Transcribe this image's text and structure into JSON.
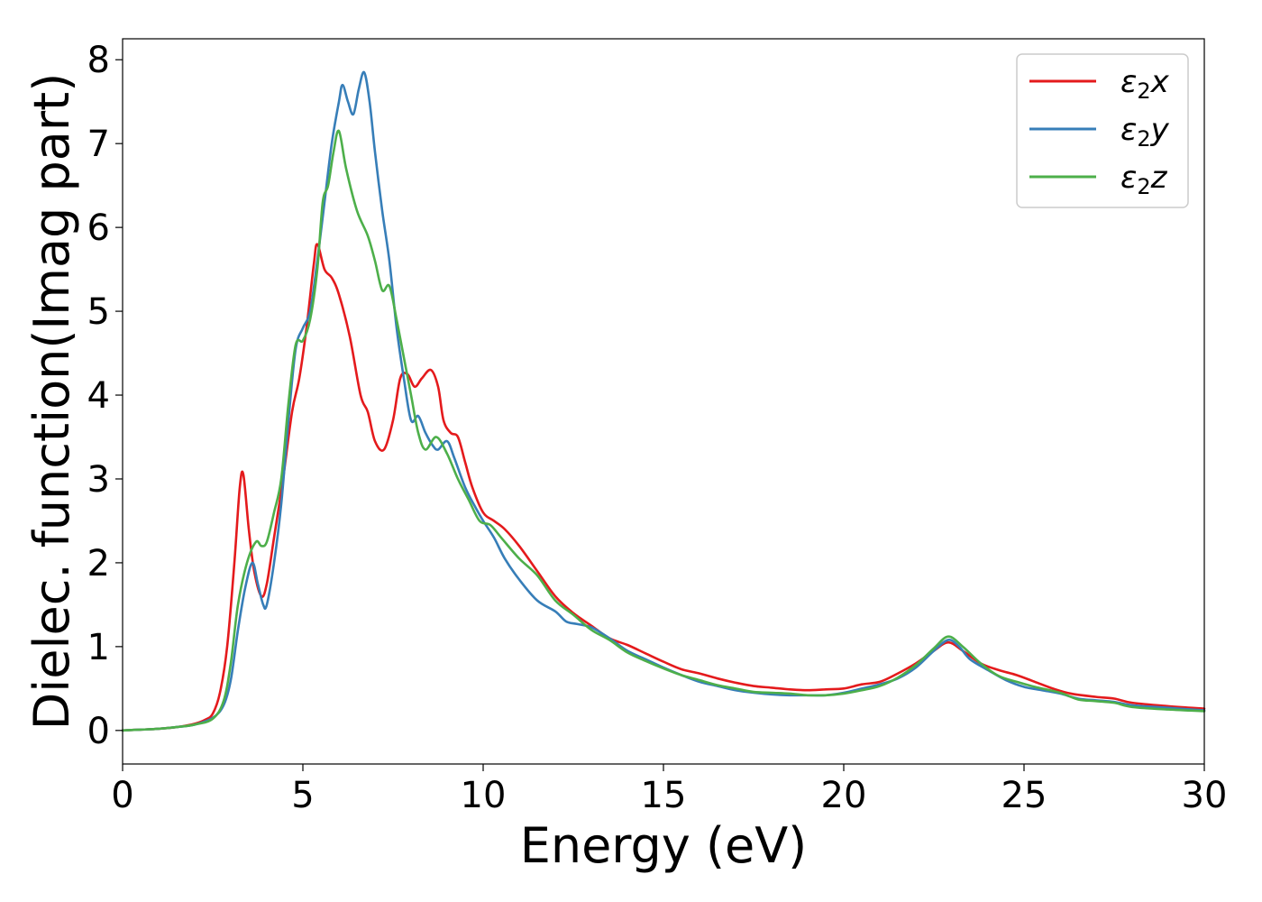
{
  "chart_data": {
    "type": "line",
    "title": "",
    "xlabel": "Energy (eV)",
    "ylabel": "Dielec. function(Imag part)",
    "xlim": [
      0,
      30
    ],
    "ylim": [
      -0.4,
      8.25
    ],
    "xticks": [
      0,
      5,
      10,
      15,
      20,
      25,
      30
    ],
    "yticks": [
      0,
      1,
      2,
      3,
      4,
      5,
      6,
      7,
      8
    ],
    "grid": false,
    "legend_position": "top-right",
    "series": [
      {
        "name": "x",
        "legend_prefix": "ε",
        "legend_sub": "2",
        "color": "#e41a1c",
        "points": [
          [
            0,
            0
          ],
          [
            0.5,
            0.01
          ],
          [
            1,
            0.02
          ],
          [
            1.5,
            0.04
          ],
          [
            2,
            0.08
          ],
          [
            2.3,
            0.13
          ],
          [
            2.5,
            0.2
          ],
          [
            2.7,
            0.45
          ],
          [
            2.9,
            1.0
          ],
          [
            3.1,
            2.0
          ],
          [
            3.25,
            2.9
          ],
          [
            3.35,
            3.05
          ],
          [
            3.5,
            2.4
          ],
          [
            3.65,
            1.9
          ],
          [
            3.85,
            1.6
          ],
          [
            4.0,
            1.75
          ],
          [
            4.2,
            2.3
          ],
          [
            4.45,
            3.0
          ],
          [
            4.7,
            3.8
          ],
          [
            4.9,
            4.2
          ],
          [
            5.1,
            4.8
          ],
          [
            5.3,
            5.55
          ],
          [
            5.4,
            5.8
          ],
          [
            5.6,
            5.5
          ],
          [
            5.8,
            5.4
          ],
          [
            6.0,
            5.2
          ],
          [
            6.3,
            4.7
          ],
          [
            6.6,
            4.0
          ],
          [
            6.8,
            3.8
          ],
          [
            7.0,
            3.45
          ],
          [
            7.25,
            3.35
          ],
          [
            7.5,
            3.7
          ],
          [
            7.7,
            4.2
          ],
          [
            7.9,
            4.25
          ],
          [
            8.1,
            4.1
          ],
          [
            8.3,
            4.2
          ],
          [
            8.55,
            4.3
          ],
          [
            8.75,
            4.1
          ],
          [
            8.9,
            3.7
          ],
          [
            9.1,
            3.55
          ],
          [
            9.3,
            3.5
          ],
          [
            9.5,
            3.2
          ],
          [
            9.7,
            2.9
          ],
          [
            10.0,
            2.6
          ],
          [
            10.3,
            2.5
          ],
          [
            10.6,
            2.4
          ],
          [
            11.0,
            2.2
          ],
          [
            11.5,
            1.9
          ],
          [
            12.0,
            1.6
          ],
          [
            12.5,
            1.4
          ],
          [
            13.0,
            1.25
          ],
          [
            13.5,
            1.1
          ],
          [
            14.0,
            1.02
          ],
          [
            14.5,
            0.92
          ],
          [
            15.0,
            0.82
          ],
          [
            15.5,
            0.73
          ],
          [
            16.0,
            0.68
          ],
          [
            16.5,
            0.62
          ],
          [
            17.0,
            0.57
          ],
          [
            17.5,
            0.53
          ],
          [
            18.0,
            0.51
          ],
          [
            18.5,
            0.49
          ],
          [
            19.0,
            0.48
          ],
          [
            19.5,
            0.49
          ],
          [
            20.0,
            0.5
          ],
          [
            20.5,
            0.55
          ],
          [
            21.0,
            0.58
          ],
          [
            21.5,
            0.68
          ],
          [
            22.0,
            0.8
          ],
          [
            22.5,
            0.95
          ],
          [
            22.9,
            1.05
          ],
          [
            23.3,
            0.95
          ],
          [
            23.8,
            0.8
          ],
          [
            24.3,
            0.72
          ],
          [
            24.8,
            0.66
          ],
          [
            25.3,
            0.58
          ],
          [
            25.8,
            0.5
          ],
          [
            26.3,
            0.44
          ],
          [
            27.0,
            0.4
          ],
          [
            27.5,
            0.38
          ],
          [
            28.0,
            0.33
          ],
          [
            29.0,
            0.29
          ],
          [
            30.0,
            0.26
          ]
        ]
      },
      {
        "name": "y",
        "legend_prefix": "ε",
        "legend_sub": "2",
        "color": "#377eb8",
        "points": [
          [
            0,
            0
          ],
          [
            0.5,
            0.01
          ],
          [
            1,
            0.02
          ],
          [
            1.5,
            0.04
          ],
          [
            2,
            0.07
          ],
          [
            2.5,
            0.15
          ],
          [
            2.8,
            0.3
          ],
          [
            3.0,
            0.6
          ],
          [
            3.2,
            1.2
          ],
          [
            3.4,
            1.7
          ],
          [
            3.6,
            2.0
          ],
          [
            3.75,
            1.75
          ],
          [
            3.9,
            1.5
          ],
          [
            4.0,
            1.5
          ],
          [
            4.2,
            2.0
          ],
          [
            4.4,
            2.7
          ],
          [
            4.6,
            3.7
          ],
          [
            4.8,
            4.55
          ],
          [
            5.0,
            4.8
          ],
          [
            5.2,
            5.0
          ],
          [
            5.4,
            5.6
          ],
          [
            5.6,
            6.3
          ],
          [
            5.8,
            7.0
          ],
          [
            6.0,
            7.5
          ],
          [
            6.1,
            7.7
          ],
          [
            6.25,
            7.5
          ],
          [
            6.4,
            7.35
          ],
          [
            6.55,
            7.65
          ],
          [
            6.7,
            7.85
          ],
          [
            6.85,
            7.5
          ],
          [
            7.0,
            6.9
          ],
          [
            7.2,
            6.2
          ],
          [
            7.4,
            5.6
          ],
          [
            7.6,
            4.8
          ],
          [
            7.8,
            4.2
          ],
          [
            8.0,
            3.7
          ],
          [
            8.2,
            3.75
          ],
          [
            8.4,
            3.55
          ],
          [
            8.6,
            3.4
          ],
          [
            8.75,
            3.35
          ],
          [
            9.0,
            3.45
          ],
          [
            9.2,
            3.25
          ],
          [
            9.5,
            2.9
          ],
          [
            9.8,
            2.65
          ],
          [
            10.0,
            2.5
          ],
          [
            10.3,
            2.3
          ],
          [
            10.6,
            2.05
          ],
          [
            11.0,
            1.8
          ],
          [
            11.5,
            1.55
          ],
          [
            12.0,
            1.42
          ],
          [
            12.3,
            1.3
          ],
          [
            12.6,
            1.27
          ],
          [
            13.0,
            1.23
          ],
          [
            13.5,
            1.1
          ],
          [
            14.0,
            0.95
          ],
          [
            14.5,
            0.85
          ],
          [
            15.0,
            0.75
          ],
          [
            15.5,
            0.66
          ],
          [
            16.0,
            0.58
          ],
          [
            16.5,
            0.53
          ],
          [
            17.0,
            0.48
          ],
          [
            17.5,
            0.45
          ],
          [
            18.0,
            0.43
          ],
          [
            18.5,
            0.42
          ],
          [
            19.0,
            0.42
          ],
          [
            19.5,
            0.42
          ],
          [
            20.0,
            0.45
          ],
          [
            20.5,
            0.5
          ],
          [
            21.0,
            0.55
          ],
          [
            21.5,
            0.62
          ],
          [
            22.0,
            0.75
          ],
          [
            22.5,
            0.95
          ],
          [
            22.9,
            1.08
          ],
          [
            23.2,
            1.0
          ],
          [
            23.5,
            0.85
          ],
          [
            24.0,
            0.72
          ],
          [
            24.5,
            0.6
          ],
          [
            25.0,
            0.52
          ],
          [
            25.5,
            0.48
          ],
          [
            26.0,
            0.44
          ],
          [
            26.5,
            0.38
          ],
          [
            27.0,
            0.36
          ],
          [
            27.5,
            0.34
          ],
          [
            28.0,
            0.3
          ],
          [
            29.0,
            0.27
          ],
          [
            30.0,
            0.24
          ]
        ]
      },
      {
        "name": "z",
        "legend_prefix": "ε",
        "legend_sub": "2",
        "color": "#4daf4a",
        "points": [
          [
            0,
            0
          ],
          [
            0.5,
            0.01
          ],
          [
            1,
            0.02
          ],
          [
            1.5,
            0.04
          ],
          [
            2,
            0.07
          ],
          [
            2.5,
            0.14
          ],
          [
            2.8,
            0.35
          ],
          [
            3.0,
            0.8
          ],
          [
            3.2,
            1.5
          ],
          [
            3.45,
            2.0
          ],
          [
            3.7,
            2.25
          ],
          [
            3.85,
            2.2
          ],
          [
            4.0,
            2.25
          ],
          [
            4.2,
            2.6
          ],
          [
            4.4,
            3.0
          ],
          [
            4.6,
            3.9
          ],
          [
            4.8,
            4.6
          ],
          [
            5.0,
            4.65
          ],
          [
            5.2,
            4.9
          ],
          [
            5.4,
            5.5
          ],
          [
            5.55,
            6.3
          ],
          [
            5.7,
            6.5
          ],
          [
            5.85,
            6.9
          ],
          [
            6.0,
            7.15
          ],
          [
            6.2,
            6.7
          ],
          [
            6.5,
            6.2
          ],
          [
            6.8,
            5.9
          ],
          [
            7.0,
            5.6
          ],
          [
            7.2,
            5.25
          ],
          [
            7.4,
            5.3
          ],
          [
            7.6,
            4.9
          ],
          [
            7.8,
            4.45
          ],
          [
            8.0,
            4.0
          ],
          [
            8.2,
            3.55
          ],
          [
            8.4,
            3.35
          ],
          [
            8.7,
            3.5
          ],
          [
            9.0,
            3.3
          ],
          [
            9.3,
            3.0
          ],
          [
            9.6,
            2.75
          ],
          [
            9.9,
            2.5
          ],
          [
            10.2,
            2.45
          ],
          [
            10.5,
            2.3
          ],
          [
            11.0,
            2.05
          ],
          [
            11.5,
            1.85
          ],
          [
            12.0,
            1.55
          ],
          [
            12.5,
            1.38
          ],
          [
            13.0,
            1.2
          ],
          [
            13.5,
            1.08
          ],
          [
            14.0,
            0.93
          ],
          [
            14.5,
            0.83
          ],
          [
            15.0,
            0.74
          ],
          [
            15.5,
            0.66
          ],
          [
            16.0,
            0.6
          ],
          [
            16.5,
            0.54
          ],
          [
            17.0,
            0.5
          ],
          [
            17.5,
            0.46
          ],
          [
            18.0,
            0.45
          ],
          [
            18.5,
            0.44
          ],
          [
            19.0,
            0.42
          ],
          [
            19.5,
            0.42
          ],
          [
            20.0,
            0.44
          ],
          [
            20.5,
            0.48
          ],
          [
            21.0,
            0.53
          ],
          [
            21.5,
            0.63
          ],
          [
            22.0,
            0.78
          ],
          [
            22.5,
            0.98
          ],
          [
            22.9,
            1.12
          ],
          [
            23.3,
            1.0
          ],
          [
            23.8,
            0.8
          ],
          [
            24.3,
            0.65
          ],
          [
            24.8,
            0.58
          ],
          [
            25.3,
            0.52
          ],
          [
            26.0,
            0.45
          ],
          [
            26.5,
            0.37
          ],
          [
            27.0,
            0.35
          ],
          [
            27.5,
            0.33
          ],
          [
            28.0,
            0.28
          ],
          [
            29.0,
            0.25
          ],
          [
            30.0,
            0.23
          ]
        ]
      }
    ]
  }
}
